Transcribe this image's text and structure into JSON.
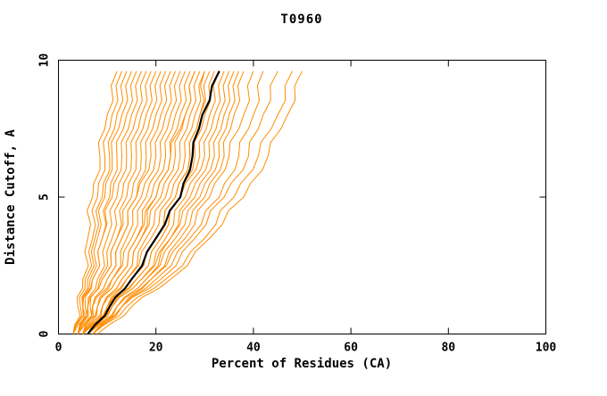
{
  "chart_data": {
    "type": "line",
    "title": "T0960",
    "xlabel": "Percent of Residues (CA)",
    "ylabel": "Distance Cutoff, A",
    "xlim": [
      0,
      100
    ],
    "ylim": [
      0,
      10
    ],
    "xticks": [
      0,
      20,
      40,
      60,
      80,
      100
    ],
    "yticks": [
      0,
      5,
      10
    ],
    "grid": false,
    "legend": "none",
    "colors": {
      "models": "#ff8c00",
      "highlight": "#000000",
      "frame": "#000000"
    },
    "y_stations": [
      0,
      1,
      2,
      3.5,
      5,
      6.5,
      8,
      9.6
    ],
    "highlight_curve": {
      "name": "highlighted-model",
      "x": [
        6,
        10.5,
        15,
        20,
        25,
        27.5,
        29.5,
        33
      ]
    },
    "model_curves": [
      [
        3,
        4,
        5,
        6,
        7,
        8.5,
        10,
        12
      ],
      [
        3,
        4.5,
        5.5,
        7,
        8,
        9.5,
        11,
        13
      ],
      [
        4,
        5,
        6,
        7.5,
        9,
        10.5,
        12,
        14
      ],
      [
        3,
        5,
        6.5,
        8,
        9.5,
        11,
        13,
        15
      ],
      [
        4,
        5.5,
        7,
        9,
        10.5,
        12,
        14,
        16
      ],
      [
        3,
        5,
        7,
        9,
        11,
        13,
        15,
        17
      ],
      [
        4,
        6,
        8,
        10,
        12,
        14,
        16,
        18
      ],
      [
        5,
        6.5,
        8.5,
        11,
        13,
        15,
        17,
        19
      ],
      [
        3,
        6,
        9,
        12,
        14,
        16,
        18,
        20
      ],
      [
        4,
        6,
        9,
        12,
        15,
        17,
        19,
        21
      ],
      [
        5,
        7,
        10,
        13,
        16,
        18,
        20,
        22
      ],
      [
        4,
        7,
        10,
        13,
        16,
        19,
        21,
        23
      ],
      [
        5,
        8,
        11,
        14,
        17,
        20,
        22,
        24
      ],
      [
        4,
        7,
        11,
        15,
        18,
        21,
        23,
        25
      ],
      [
        5,
        8,
        12,
        16,
        19,
        22,
        24,
        26
      ],
      [
        6,
        9,
        13,
        17,
        20,
        23,
        25,
        27
      ],
      [
        4,
        8,
        12,
        16,
        20,
        23,
        26,
        28
      ],
      [
        5,
        9,
        13,
        17,
        21,
        24,
        26,
        28
      ],
      [
        6,
        10,
        14,
        18,
        22,
        25,
        27,
        29
      ],
      [
        5,
        9,
        14,
        19,
        23,
        26,
        28,
        30
      ],
      [
        6,
        10,
        15,
        20,
        24,
        27,
        29,
        30
      ],
      [
        5,
        10,
        15,
        20,
        24,
        27,
        29,
        31
      ],
      [
        6,
        10,
        16,
        21,
        25,
        28,
        30,
        32
      ],
      [
        5,
        11,
        16,
        21,
        25,
        29,
        31,
        33
      ],
      [
        6,
        11,
        17,
        22,
        26,
        30,
        32,
        34
      ],
      [
        7,
        12,
        18,
        23,
        27,
        31,
        33,
        35
      ],
      [
        5,
        11,
        17,
        23,
        28,
        32,
        34,
        36
      ],
      [
        6,
        12,
        18,
        24,
        29,
        33,
        35,
        37
      ],
      [
        7,
        13,
        19,
        25,
        30,
        34,
        36,
        38
      ],
      [
        6,
        12,
        19,
        26,
        31,
        35,
        38,
        40
      ],
      [
        7,
        13,
        20,
        27,
        33,
        37,
        40,
        42
      ],
      [
        6,
        13,
        21,
        28,
        34,
        39,
        42,
        45
      ],
      [
        7,
        14,
        22,
        30,
        36,
        41,
        45,
        48
      ],
      [
        8,
        15,
        23,
        31,
        38,
        43,
        47,
        50
      ]
    ]
  }
}
